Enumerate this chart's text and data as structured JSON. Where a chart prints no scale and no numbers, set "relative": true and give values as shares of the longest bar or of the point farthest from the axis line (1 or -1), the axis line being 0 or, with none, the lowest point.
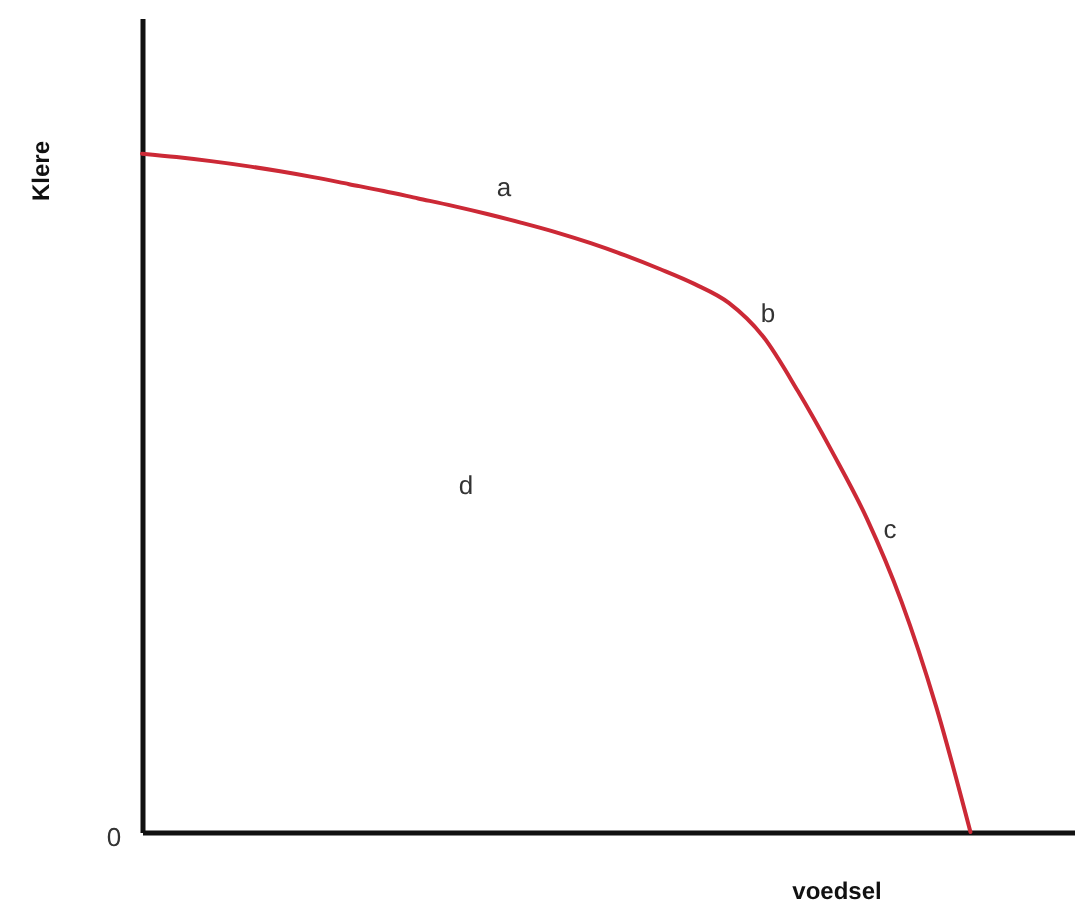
{
  "chart_data": {
    "type": "line",
    "relative": true,
    "xlabel": "voedsel",
    "ylabel": "Klere",
    "categories": [
      null,
      null,
      null,
      null,
      null,
      null,
      null,
      null,
      null,
      null,
      null,
      null,
      null,
      null,
      null,
      null,
      null,
      null,
      null,
      null,
      null,
      null,
      null,
      null,
      null,
      null,
      null,
      null
    ],
    "series": [
      {
        "color": "#cc2936",
        "values": [
          1.0,
          0.995,
          0.989,
          0.982,
          0.974,
          0.965,
          0.955,
          0.945,
          0.934,
          0.923,
          0.911,
          0.898,
          0.884,
          0.868,
          0.85,
          0.83,
          0.808,
          0.78,
          0.73,
          0.65,
          0.56,
          0.462,
          0.34,
          0.186,
          0,
          null,
          null,
          null
        ]
      }
    ],
    "annotations": [
      "a",
      "b",
      "c",
      "d",
      "0"
    ]
  }
}
